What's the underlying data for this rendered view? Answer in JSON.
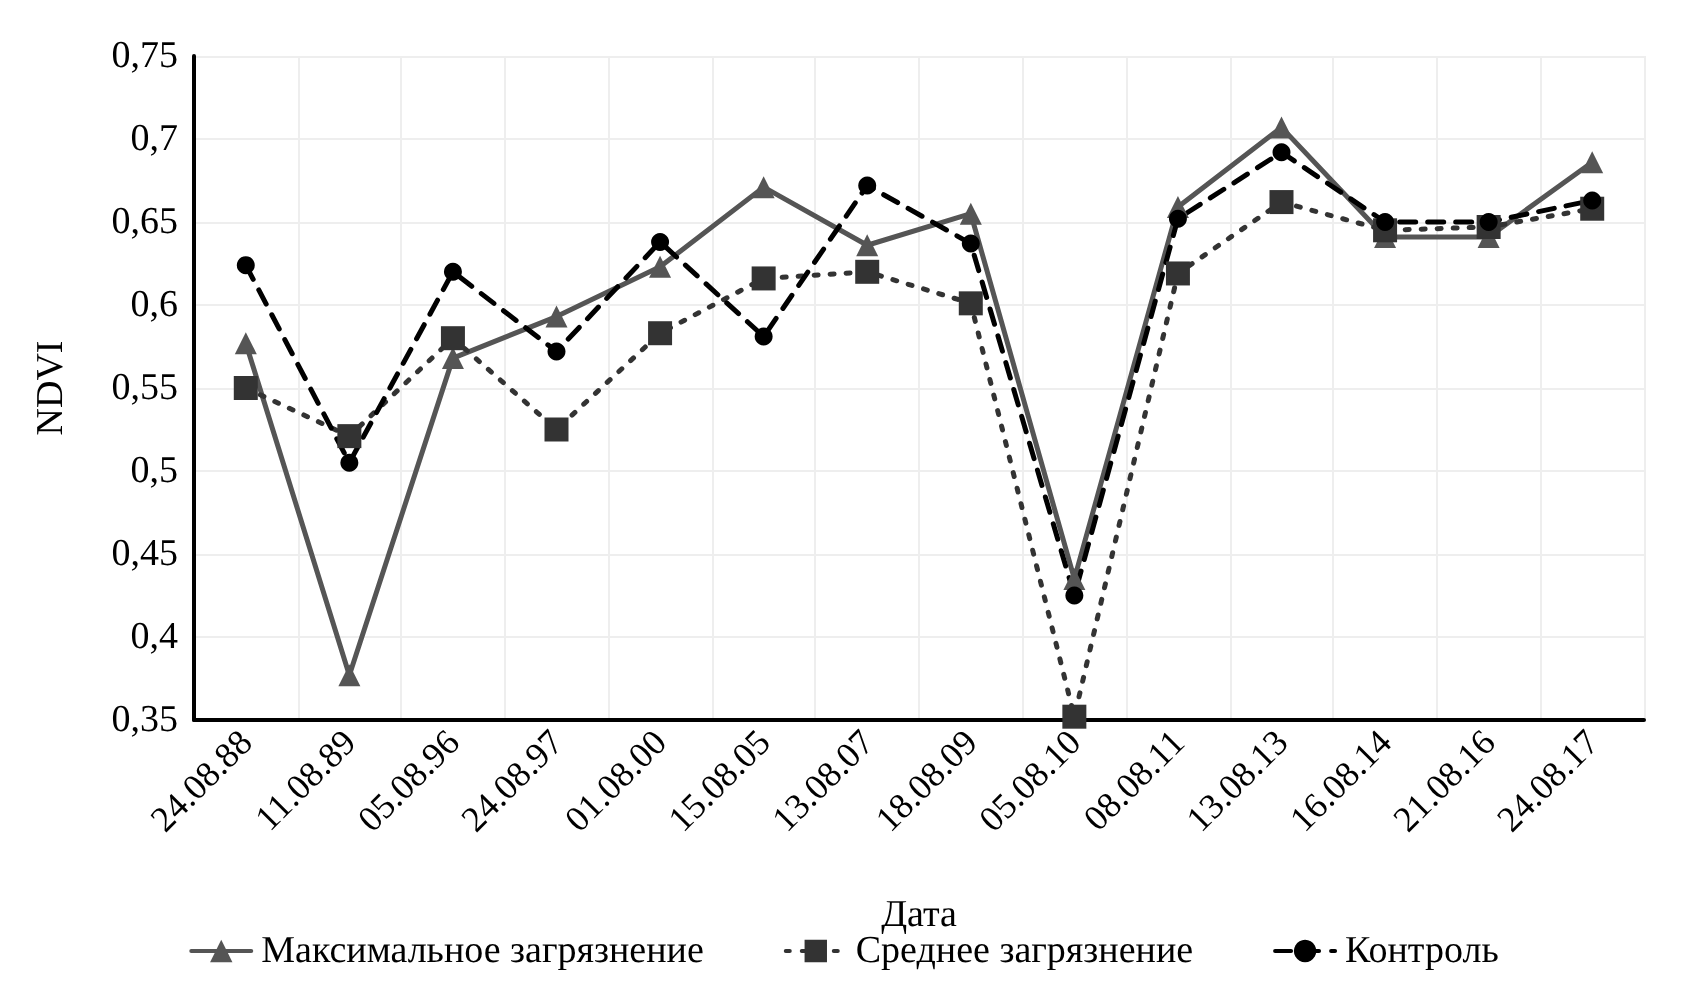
{
  "chart_data": {
    "type": "line",
    "xlabel": "Дата",
    "ylabel": "NDVI",
    "categories": [
      "24.08.88",
      "11.08.89",
      "05.08.96",
      "24.08.97",
      "01.08.00",
      "15.08.05",
      "13.08.07",
      "18.08.09",
      "05.08.10",
      "08.08.11",
      "13.08.13",
      "16.08.14",
      "21.08.16",
      "24.08.17"
    ],
    "series": [
      {
        "name": "Максимальное загрязнение",
        "color": "#555555",
        "marker": "triangle",
        "line_style": "solid",
        "values": [
          0.577,
          0.377,
          0.568,
          0.593,
          0.623,
          0.671,
          0.636,
          0.655,
          0.435,
          0.659,
          0.707,
          0.641,
          0.641,
          0.686
        ]
      },
      {
        "name": "Среднее загрязнение",
        "color": "#333333",
        "marker": "square",
        "line_style": "dotted",
        "values": [
          0.55,
          0.521,
          0.58,
          0.525,
          0.583,
          0.616,
          0.62,
          0.601,
          0.352,
          0.619,
          0.662,
          0.645,
          0.647,
          0.658
        ]
      },
      {
        "name": "Контроль",
        "color": "#000000",
        "marker": "circle",
        "line_style": "dashed",
        "values": [
          0.624,
          0.505,
          0.62,
          0.572,
          0.638,
          0.581,
          0.672,
          0.637,
          0.425,
          0.652,
          0.692,
          0.65,
          0.65,
          0.663
        ]
      }
    ],
    "ylim": [
      0.35,
      0.75
    ],
    "yticks": [
      {
        "value": 0.35,
        "label": "0,35"
      },
      {
        "value": 0.4,
        "label": "0,4"
      },
      {
        "value": 0.45,
        "label": "0,45"
      },
      {
        "value": 0.5,
        "label": "0,5"
      },
      {
        "value": 0.55,
        "label": "0,55"
      },
      {
        "value": 0.6,
        "label": "0,6"
      },
      {
        "value": 0.65,
        "label": "0,65"
      },
      {
        "value": 0.7,
        "label": "0,7"
      },
      {
        "value": 0.75,
        "label": "0,75"
      }
    ],
    "grid": true,
    "legend": "bottom"
  }
}
